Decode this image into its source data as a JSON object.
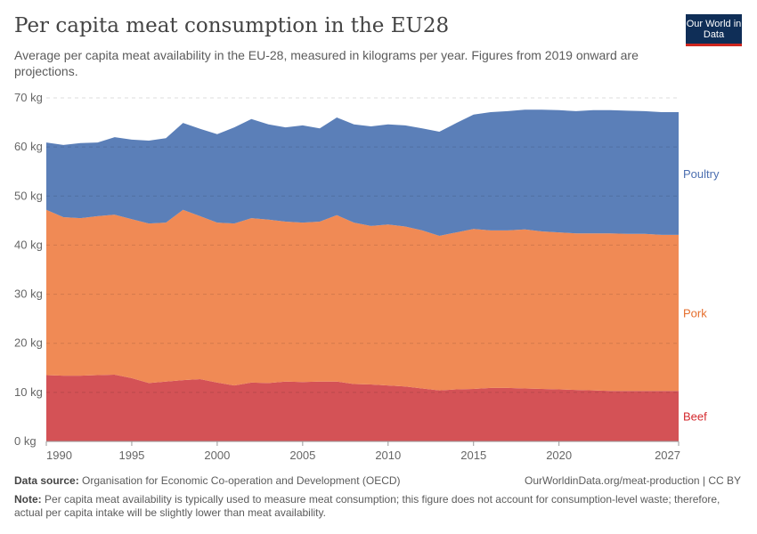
{
  "header": {
    "title": "Per capita meat consumption in the EU28",
    "subtitle": "Average per capita meat availability in the EU-28, measured in kilograms per year. Figures from 2019 onward are projections.",
    "logo_text": "Our World in Data"
  },
  "footer": {
    "source_label": "Data source:",
    "source": "Organisation for Economic Co-operation and Development (OECD)",
    "url": "OurWorldinData.org/meat-production | CC BY",
    "note_label": "Note:",
    "note": "Per capita meat availability is typically used to measure meat consumption; this figure does not account for consumption-level waste; therefore, actual per capita intake will be slightly lower than meat availability."
  },
  "chart_data": {
    "type": "area",
    "stacked": true,
    "title": "Per capita meat consumption in the EU28",
    "xlabel": "",
    "ylabel": "",
    "xlim": [
      1990,
      2027
    ],
    "ylim": [
      0,
      70
    ],
    "grid": "horizontal dashed",
    "legend": "right, inline labels",
    "y_ticks": [
      "0 kg",
      "10 kg",
      "20 kg",
      "30 kg",
      "40 kg",
      "50 kg",
      "60 kg",
      "70 kg"
    ],
    "x_ticks": [
      "1990",
      "1995",
      "2000",
      "2005",
      "2010",
      "2015",
      "2020",
      "2027"
    ],
    "x": [
      1990,
      1991,
      1992,
      1993,
      1994,
      1995,
      1996,
      1997,
      1998,
      1999,
      2000,
      2001,
      2002,
      2003,
      2004,
      2005,
      2006,
      2007,
      2008,
      2009,
      2010,
      2011,
      2012,
      2013,
      2014,
      2015,
      2016,
      2017,
      2018,
      2019,
      2020,
      2021,
      2022,
      2023,
      2024,
      2025,
      2026,
      2027
    ],
    "series": [
      {
        "name": "Beef",
        "color": "#d45256",
        "label_color": "#d42a2e",
        "values": [
          13.5,
          13.4,
          13.4,
          13.5,
          13.6,
          12.9,
          11.9,
          12.2,
          12.5,
          12.7,
          12.0,
          11.4,
          12.0,
          11.9,
          12.2,
          12.1,
          12.2,
          12.2,
          11.7,
          11.6,
          11.4,
          11.2,
          10.8,
          10.4,
          10.6,
          10.7,
          10.9,
          10.9,
          10.8,
          10.7,
          10.6,
          10.5,
          10.4,
          10.3,
          10.3,
          10.3,
          10.3,
          10.3
        ]
      },
      {
        "name": "Pork",
        "color": "#f08a55",
        "label_color": "#e56e2c",
        "values": [
          33.7,
          32.3,
          32.1,
          32.4,
          32.6,
          32.4,
          32.5,
          32.4,
          34.7,
          33.2,
          32.6,
          33.0,
          33.5,
          33.3,
          32.6,
          32.5,
          32.6,
          33.9,
          32.9,
          32.3,
          32.8,
          32.6,
          32.2,
          31.5,
          32.0,
          32.6,
          32.1,
          32.1,
          32.4,
          32.1,
          32.0,
          31.9,
          32.0,
          32.1,
          32.0,
          32.0,
          31.8,
          31.8
        ]
      },
      {
        "name": "Poultry",
        "color": "#5b7fb8",
        "label_color": "#4c6fb0",
        "values": [
          13.7,
          14.7,
          15.3,
          15.0,
          15.8,
          16.2,
          16.9,
          17.2,
          17.7,
          17.8,
          18.0,
          19.6,
          20.2,
          19.4,
          19.2,
          19.8,
          19.0,
          19.9,
          20.0,
          20.3,
          20.4,
          20.6,
          20.8,
          21.2,
          22.3,
          23.3,
          24.1,
          24.3,
          24.4,
          24.8,
          24.9,
          24.9,
          25.1,
          25.1,
          25.1,
          25.0,
          25.0,
          25.0
        ]
      }
    ]
  }
}
